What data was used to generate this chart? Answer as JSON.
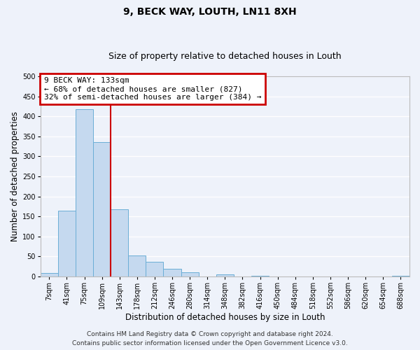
{
  "title": "9, BECK WAY, LOUTH, LN11 8XH",
  "subtitle": "Size of property relative to detached houses in Louth",
  "xlabel": "Distribution of detached houses by size in Louth",
  "ylabel": "Number of detached properties",
  "bar_labels": [
    "7sqm",
    "41sqm",
    "75sqm",
    "109sqm",
    "143sqm",
    "178sqm",
    "212sqm",
    "246sqm",
    "280sqm",
    "314sqm",
    "348sqm",
    "382sqm",
    "416sqm",
    "450sqm",
    "484sqm",
    "518sqm",
    "552sqm",
    "586sqm",
    "620sqm",
    "654sqm",
    "688sqm"
  ],
  "bar_values": [
    8,
    165,
    418,
    335,
    168,
    53,
    37,
    19,
    10,
    0,
    5,
    0,
    1,
    0,
    0,
    0,
    0,
    0,
    0,
    0,
    1
  ],
  "bar_color": "#c5d9ef",
  "bar_edge_color": "#6baed6",
  "vline_pos": 3.5,
  "vline_color": "#cc0000",
  "annotation_line1": "9 BECK WAY: 133sqm",
  "annotation_line2": "← 68% of detached houses are smaller (827)",
  "annotation_line3": "32% of semi-detached houses are larger (384) →",
  "annotation_box_color": "#cc0000",
  "ylim": [
    0,
    500
  ],
  "yticks": [
    0,
    50,
    100,
    150,
    200,
    250,
    300,
    350,
    400,
    450,
    500
  ],
  "footer_line1": "Contains HM Land Registry data © Crown copyright and database right 2024.",
  "footer_line2": "Contains public sector information licensed under the Open Government Licence v3.0.",
  "background_color": "#eef2fa",
  "grid_color": "#ffffff",
  "title_fontsize": 10,
  "subtitle_fontsize": 9,
  "axis_label_fontsize": 8.5,
  "tick_fontsize": 7,
  "annotation_fontsize": 8,
  "footer_fontsize": 6.5
}
